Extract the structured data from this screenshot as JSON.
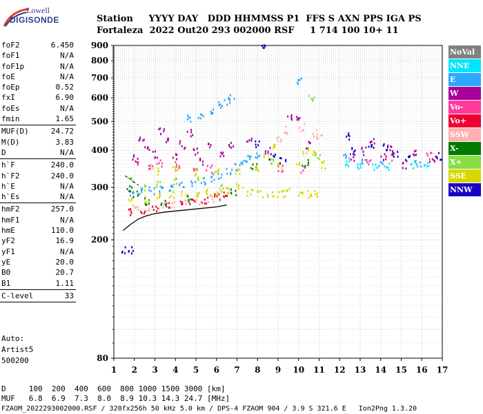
{
  "logo": {
    "line1": "Lowell",
    "line2": "DIGISONDE"
  },
  "header": {
    "row1": "Station     YYYY DAY   DDD HHMMSS P1  FFS S AXN PPS IGA PS",
    "row2": "Fortaleza  2022 Out20 293 002000 RSF     1 714 100 10+ 11"
  },
  "params": {
    "group1": [
      {
        "name": "foF2",
        "value": "6.450"
      },
      {
        "name": "foF1",
        "value": "N/A"
      },
      {
        "name": "foF1p",
        "value": "N/A"
      },
      {
        "name": "foE",
        "value": "N/A"
      },
      {
        "name": "foEp",
        "value": "0.52"
      },
      {
        "name": "fxI",
        "value": "6.90"
      },
      {
        "name": "foEs",
        "value": "N/A"
      },
      {
        "name": "fmin",
        "value": "1.65"
      }
    ],
    "group2": [
      {
        "name": "MUF(D)",
        "value": "24.72"
      },
      {
        "name": "M(D)",
        "value": "3.83"
      },
      {
        "name": "D",
        "value": "N/A"
      }
    ],
    "group3": [
      {
        "name": "h`F",
        "value": "240.0"
      },
      {
        "name": "h`F2",
        "value": "240.0"
      },
      {
        "name": "h`E",
        "value": "N/A"
      },
      {
        "name": "h`Es",
        "value": "N/A"
      }
    ],
    "group4": [
      {
        "name": "hmF2",
        "value": "257.0"
      },
      {
        "name": "hmF1",
        "value": "N/A"
      },
      {
        "name": "hmE",
        "value": "110.0"
      },
      {
        "name": "yF2",
        "value": "16.9"
      },
      {
        "name": "yF1",
        "value": "N/A"
      },
      {
        "name": "yE",
        "value": "20.0"
      },
      {
        "name": "B0",
        "value": "20.7"
      },
      {
        "name": "B1",
        "value": "1.11"
      }
    ],
    "group5": [
      {
        "name": "C-level",
        "value": "33"
      }
    ]
  },
  "auto": {
    "line1": "Auto:",
    "line2": "Artist5",
    "line3": "500200"
  },
  "footer": {
    "row1": "D     100  200  400  600  800 1000 1500 3000 [km]",
    "row2": "MUF   6.8  6.9  7.3  8.0  8.9 10.3 14.3 24.7 [MHz]",
    "row3": "FZAOM_2022293002000.RSF / 320fx256h 50 kHz 5.0 km / DPS-4 FZAOM 904 / 3.9 S 321.6 E   Ion2Png 1.3.20"
  },
  "legend": [
    {
      "label": "NoVal",
      "color": "#808080"
    },
    {
      "label": "NNE",
      "color": "#00e5ff"
    },
    {
      "label": "E",
      "color": "#2ea7ff"
    },
    {
      "label": "W",
      "color": "#a8009a"
    },
    {
      "label": "Vo-",
      "color": "#ff3a9a"
    },
    {
      "label": "Vo+",
      "color": "#ee0033"
    },
    {
      "label": "SSW",
      "color": "#ffb0b0"
    },
    {
      "label": "X-",
      "color": "#007a00"
    },
    {
      "label": "X+",
      "color": "#88dd44"
    },
    {
      "label": "SSE",
      "color": "#d8d800"
    },
    {
      "label": "NNW",
      "color": "#1a00c8"
    }
  ],
  "chart_data": {
    "type": "scatter",
    "title": "",
    "xlabel": "",
    "ylabel": "",
    "xlim": [
      1,
      17
    ],
    "ylim": [
      80,
      900
    ],
    "y_scale": "log",
    "x_ticks": [
      "1",
      "2",
      "3",
      "4",
      "5",
      "6",
      "7",
      "8",
      "9",
      "10",
      "11",
      "12",
      "13",
      "14",
      "15",
      "16",
      "17"
    ],
    "y_ticks": [
      "80",
      "200",
      "300",
      "400",
      "500",
      "600",
      "700",
      "800",
      "900"
    ],
    "grid": true,
    "series": [
      {
        "name": "E",
        "color": "#2ea7ff",
        "points": [
          [
            1.9,
            290
          ],
          [
            2.3,
            292
          ],
          [
            2.8,
            295
          ],
          [
            3.3,
            298
          ],
          [
            3.8,
            302
          ],
          [
            4.3,
            306
          ],
          [
            4.8,
            312
          ],
          [
            5.3,
            318
          ],
          [
            5.8,
            325
          ],
          [
            6.2,
            333
          ],
          [
            6.6,
            342
          ],
          [
            7.0,
            352
          ],
          [
            7.3,
            362
          ],
          [
            7.6,
            375
          ],
          [
            8.0,
            390
          ],
          [
            4.7,
            515
          ],
          [
            5.2,
            530
          ],
          [
            5.7,
            550
          ],
          [
            6.1,
            570
          ],
          [
            6.5,
            590
          ],
          [
            6.7,
            600
          ],
          [
            10.0,
            690
          ],
          [
            12.3,
            380
          ],
          [
            13.1,
            365
          ],
          [
            14.0,
            362
          ],
          [
            15.8,
            365
          ]
        ]
      },
      {
        "name": "W",
        "color": "#a8009a",
        "points": [
          [
            2.0,
            380
          ],
          [
            2.3,
            440
          ],
          [
            2.6,
            410
          ],
          [
            3.0,
            390
          ],
          [
            3.3,
            470
          ],
          [
            3.6,
            430
          ],
          [
            4.0,
            380
          ],
          [
            4.3,
            420
          ],
          [
            4.7,
            460
          ],
          [
            5.0,
            400
          ],
          [
            5.3,
            370
          ],
          [
            5.7,
            420
          ],
          [
            6.2,
            390
          ],
          [
            6.7,
            420
          ],
          [
            7.6,
            430
          ],
          [
            8.5,
            400
          ],
          [
            9.5,
            520
          ],
          [
            10.0,
            520
          ],
          [
            10.5,
            420
          ],
          [
            12.6,
            380
          ],
          [
            13.2,
            400
          ],
          [
            13.6,
            430
          ],
          [
            14.1,
            380
          ],
          [
            14.4,
            410
          ],
          [
            15.1,
            360
          ],
          [
            15.6,
            395
          ],
          [
            16.5,
            375
          ]
        ]
      },
      {
        "name": "Vo-",
        "color": "#ff3a9a",
        "points": [
          [
            2.2,
            360
          ],
          [
            2.8,
            350
          ],
          [
            3.2,
            365
          ],
          [
            4.1,
            360
          ],
          [
            4.9,
            352
          ],
          [
            5.6,
            348
          ],
          [
            9.1,
            350
          ],
          [
            10.2,
            345
          ],
          [
            13.4,
            370
          ],
          [
            14.6,
            382
          ],
          [
            16.3,
            385
          ]
        ]
      },
      {
        "name": "Vo+",
        "color": "#ee0033",
        "points": [
          [
            1.8,
            250
          ],
          [
            2.4,
            254
          ],
          [
            3.0,
            258
          ],
          [
            3.6,
            262
          ],
          [
            4.2,
            266
          ],
          [
            4.8,
            270
          ],
          [
            5.4,
            274
          ],
          [
            6.0,
            279
          ],
          [
            6.4,
            283
          ]
        ]
      },
      {
        "name": "SSW",
        "color": "#ffb0b0",
        "points": [
          [
            2.1,
            255
          ],
          [
            2.7,
            260
          ],
          [
            3.3,
            262
          ],
          [
            3.9,
            265
          ],
          [
            4.5,
            268
          ],
          [
            5.1,
            272
          ],
          [
            5.7,
            276
          ],
          [
            9.0,
            440
          ],
          [
            9.4,
            470
          ],
          [
            10.1,
            480
          ],
          [
            10.8,
            460
          ],
          [
            11.0,
            440
          ]
        ]
      },
      {
        "name": "X-",
        "color": "#007a00",
        "points": [
          [
            1.7,
            300
          ],
          [
            2.0,
            285
          ],
          [
            2.6,
            270
          ],
          [
            3.4,
            268
          ],
          [
            4.6,
            275
          ],
          [
            6.8,
            290
          ],
          [
            7.8,
            355
          ],
          [
            10.3,
            365
          ]
        ]
      },
      {
        "name": "X+",
        "color": "#88dd44",
        "points": [
          [
            1.8,
            320
          ],
          [
            2.4,
            300
          ],
          [
            3.1,
            310
          ],
          [
            4.0,
            315
          ],
          [
            5.2,
            320
          ],
          [
            6.3,
            300
          ],
          [
            8.6,
            370
          ],
          [
            10.6,
            600
          ],
          [
            10.9,
            380
          ]
        ]
      },
      {
        "name": "SSE",
        "color": "#d8d800",
        "points": [
          [
            1.8,
            270
          ],
          [
            2.5,
            275
          ],
          [
            3.1,
            280
          ],
          [
            3.8,
            285
          ],
          [
            4.4,
            288
          ],
          [
            5.0,
            290
          ],
          [
            5.6,
            290
          ],
          [
            6.1,
            292
          ],
          [
            6.6,
            296
          ],
          [
            7.1,
            302
          ],
          [
            7.6,
            290
          ],
          [
            8.1,
            288
          ],
          [
            8.6,
            286
          ],
          [
            9.1,
            286
          ],
          [
            9.4,
            290
          ],
          [
            10.1,
            287
          ],
          [
            10.5,
            286
          ],
          [
            10.9,
            286
          ],
          [
            3.0,
            340
          ],
          [
            4.0,
            345
          ],
          [
            5.0,
            340
          ],
          [
            6.0,
            340
          ],
          [
            7.0,
            345
          ],
          [
            8.0,
            350
          ],
          [
            8.4,
            380
          ],
          [
            8.8,
            410
          ],
          [
            9.0,
            360
          ],
          [
            10.0,
            360
          ],
          [
            10.3,
            400
          ],
          [
            10.7,
            390
          ],
          [
            11.2,
            360
          ]
        ]
      },
      {
        "name": "NNW",
        "color": "#1a00c8",
        "points": [
          [
            1.5,
            185
          ],
          [
            1.8,
            186
          ],
          [
            7.9,
            420
          ],
          [
            8.3,
            890
          ],
          [
            8.7,
            380
          ],
          [
            9.2,
            370
          ],
          [
            12.3,
            450
          ],
          [
            12.6,
            400
          ],
          [
            13.5,
            420
          ],
          [
            14.2,
            410
          ],
          [
            14.7,
            390
          ],
          [
            15.3,
            380
          ],
          [
            16.8,
            385
          ]
        ]
      },
      {
        "name": "NNE",
        "color": "#00e5ff",
        "points": [
          [
            12.4,
            360
          ],
          [
            12.9,
            355
          ],
          [
            13.7,
            352
          ],
          [
            14.3,
            354
          ],
          [
            15.5,
            360
          ],
          [
            16.2,
            365
          ]
        ]
      }
    ],
    "trace_curve": {
      "x": [
        1.45,
        1.8,
        2.2,
        2.6,
        3.0,
        3.5,
        4.0,
        4.5,
        5.0,
        5.5,
        6.0,
        6.5
      ],
      "y": [
        215,
        225,
        235,
        241,
        245,
        248,
        250,
        252,
        254,
        256,
        258,
        262
      ]
    },
    "dashed_curve": {
      "x": [
        1.55,
        1.8,
        2.0,
        2.2
      ],
      "y": [
        328,
        320,
        312,
        305
      ]
    }
  }
}
